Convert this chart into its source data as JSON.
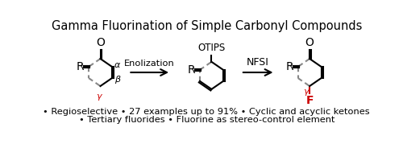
{
  "title": "Gamma Fluorination of Simple Carbonyl Compounds",
  "title_fontsize": 10.5,
  "bullet_line1": "• Regioselective • 27 examples up to 91% • Cyclic and acyclic ketones",
  "bullet_line2": "• Tertiary fluorides • Fluorine as stereo-control element",
  "bullet_fontsize": 8.2,
  "enolization_label": "Enolization",
  "nfsi_label": "NFSI",
  "bg_color": "#ffffff",
  "black": "#000000",
  "red": "#cc0000"
}
